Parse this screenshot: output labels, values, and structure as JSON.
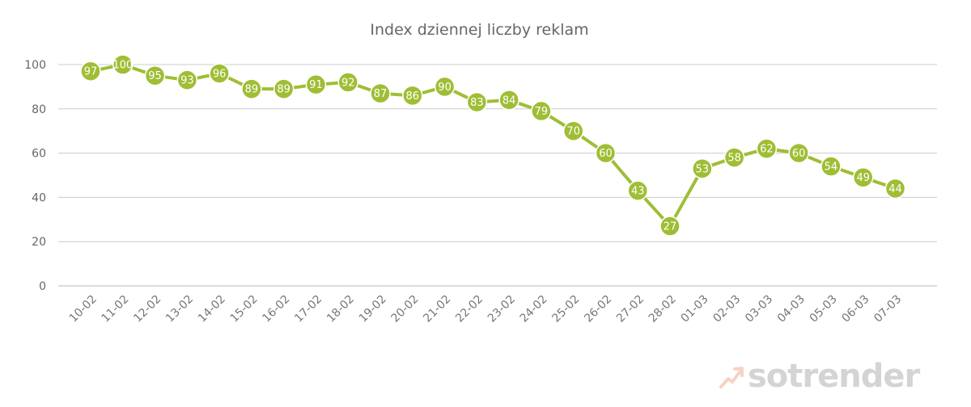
{
  "chart_data": {
    "type": "line",
    "title": "Index dziennej liczby reklam",
    "xlabel": "",
    "ylabel": "",
    "categories": [
      "10-02",
      "11-02",
      "12-02",
      "13-02",
      "14-02",
      "15-02",
      "16-02",
      "17-02",
      "18-02",
      "19-02",
      "20-02",
      "21-02",
      "22-02",
      "23-02",
      "24-02",
      "25-02",
      "26-02",
      "27-02",
      "28-02",
      "01-03",
      "02-03",
      "03-03",
      "04-03",
      "05-03",
      "06-03",
      "07-03"
    ],
    "series": [
      {
        "values": [
          97,
          100,
          95,
          93,
          96,
          89,
          89,
          91,
          92,
          87,
          86,
          90,
          83,
          84,
          79,
          70,
          60,
          43,
          27,
          53,
          58,
          62,
          60,
          54,
          49,
          44
        ]
      }
    ],
    "ylim": [
      0,
      100
    ],
    "yticks": [
      0,
      20,
      40,
      60,
      80,
      100
    ],
    "grid": true,
    "data_labels": true,
    "line_color": "#9fbe35",
    "legend": "none"
  },
  "watermark": {
    "text": "sotrender",
    "icon": "trend-arrow-icon"
  }
}
